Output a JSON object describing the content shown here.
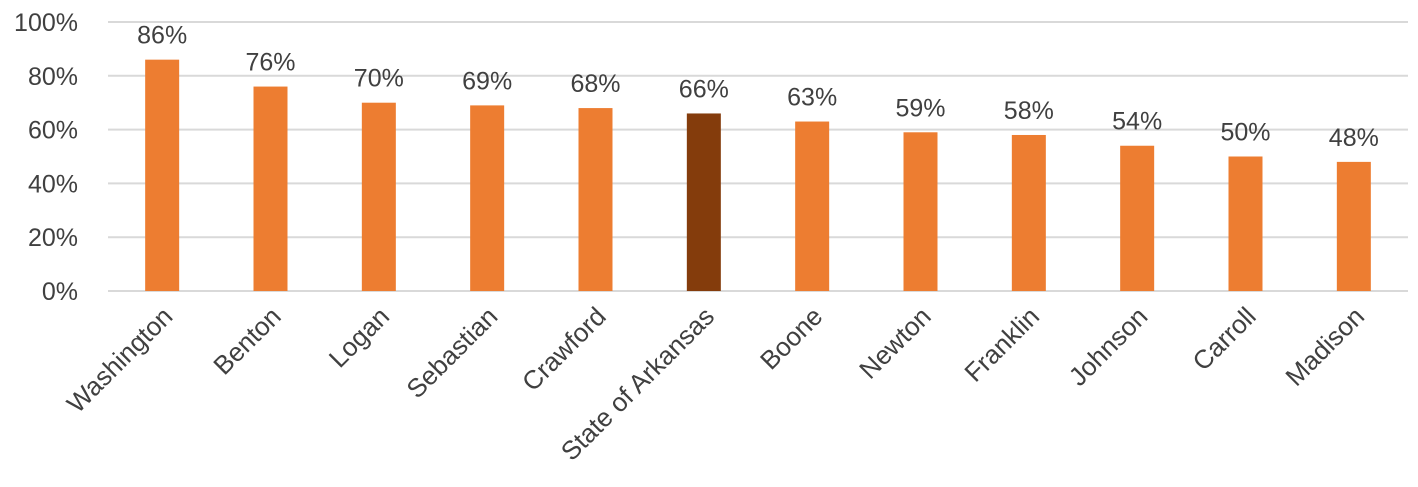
{
  "chart_data": {
    "type": "bar",
    "title": "",
    "xlabel": "",
    "ylabel": "",
    "categories": [
      "Washington",
      "Benton",
      "Logan",
      "Sebastian",
      "Crawford",
      "State of Arkansas",
      "Boone",
      "Newton",
      "Franklin",
      "Johnson",
      "Carroll",
      "Madison"
    ],
    "values": [
      86,
      76,
      70,
      69,
      68,
      66,
      63,
      59,
      58,
      54,
      50,
      48
    ],
    "value_labels": [
      "86%",
      "76%",
      "70%",
      "69%",
      "68%",
      "66%",
      "63%",
      "59%",
      "58%",
      "54%",
      "50%",
      "48%"
    ],
    "ylim": [
      0,
      100
    ],
    "y_ticks": [
      0,
      20,
      40,
      60,
      80,
      100
    ],
    "y_tick_labels": [
      "0%",
      "20%",
      "40%",
      "60%",
      "80%",
      "100%"
    ],
    "grid": true,
    "legend": "none",
    "colors": {
      "bar": "#ed7d31",
      "highlight_bar": "#843c0c",
      "gridline": "#d9d9d9",
      "text": "#404040"
    },
    "highlight_category": "State of Arkansas"
  }
}
